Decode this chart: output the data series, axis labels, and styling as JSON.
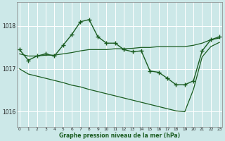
{
  "title": "Graphe pression niveau de la mer (hPa)",
  "bg_color": "#cce8e8",
  "grid_color": "#ffffff",
  "line_color": "#1a5c20",
  "x_ticks": [
    0,
    1,
    2,
    3,
    4,
    5,
    6,
    7,
    8,
    9,
    10,
    11,
    12,
    13,
    14,
    15,
    16,
    17,
    18,
    19,
    20,
    21,
    22,
    23
  ],
  "y_ticks": [
    1016,
    1017,
    1018
  ],
  "ylim": [
    1015.65,
    1018.55
  ],
  "xlim": [
    -0.3,
    23.3
  ],
  "s1_x": [
    0,
    1,
    2,
    3,
    4,
    5,
    6,
    7,
    8,
    9,
    10,
    11,
    12,
    13,
    14,
    15,
    16,
    17,
    18,
    19,
    20,
    21,
    22,
    23
  ],
  "s1_y": [
    1017.45,
    1017.2,
    1017.3,
    1017.35,
    1017.3,
    1017.55,
    1017.8,
    1018.1,
    1018.15,
    1017.75,
    1017.6,
    1017.6,
    1017.45,
    1017.4,
    1017.42,
    1016.95,
    1016.92,
    1016.78,
    1016.63,
    1016.63,
    1016.72,
    1017.42,
    1017.68,
    1017.75
  ],
  "s2_x": [
    0,
    1,
    2,
    3,
    4,
    5,
    6,
    7,
    8,
    9,
    10,
    11,
    12,
    13,
    14,
    15,
    16,
    17,
    18,
    19,
    20,
    21,
    22,
    23
  ],
  "s2_y": [
    1017.35,
    1017.3,
    1017.3,
    1017.32,
    1017.32,
    1017.35,
    1017.38,
    1017.42,
    1017.45,
    1017.45,
    1017.45,
    1017.47,
    1017.47,
    1017.48,
    1017.5,
    1017.5,
    1017.52,
    1017.52,
    1017.52,
    1017.52,
    1017.55,
    1017.6,
    1017.68,
    1017.72
  ],
  "s3_x": [
    0,
    1,
    2,
    3,
    4,
    5,
    6,
    7,
    8,
    9,
    10,
    11,
    12,
    13,
    14,
    15,
    16,
    17,
    18,
    19,
    20,
    21,
    22,
    23
  ],
  "s3_y": [
    1017.0,
    1016.88,
    1016.83,
    1016.78,
    1016.73,
    1016.68,
    1016.62,
    1016.58,
    1016.52,
    1016.47,
    1016.42,
    1016.37,
    1016.32,
    1016.27,
    1016.22,
    1016.17,
    1016.12,
    1016.07,
    1016.02,
    1016.0,
    1016.52,
    1017.28,
    1017.52,
    1017.62
  ]
}
